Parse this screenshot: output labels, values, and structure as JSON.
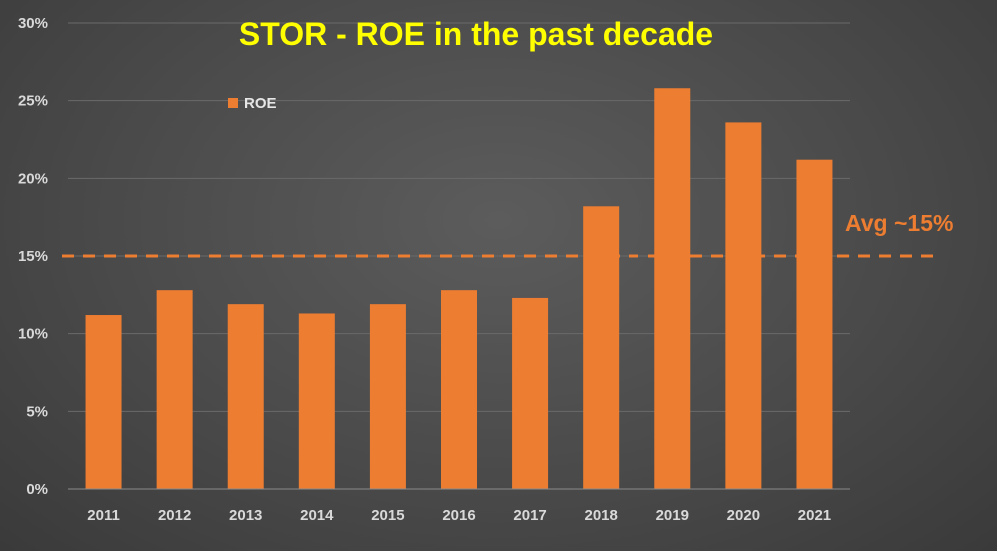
{
  "chart_data": {
    "type": "bar",
    "title": "STOR - ROE in the past decade",
    "categories": [
      "2011",
      "2012",
      "2013",
      "2014",
      "2015",
      "2016",
      "2017",
      "2018",
      "2019",
      "2020",
      "2021"
    ],
    "series": [
      {
        "name": "ROE",
        "values": [
          11.2,
          12.8,
          11.9,
          11.3,
          11.9,
          12.8,
          12.3,
          18.2,
          25.8,
          23.6,
          21.2
        ],
        "color": "#ed7d31"
      }
    ],
    "ylim": [
      0,
      30
    ],
    "yticks": [
      0,
      5,
      10,
      15,
      20,
      25,
      30
    ],
    "ytick_labels": [
      "0%",
      "5%",
      "10%",
      "15%",
      "20%",
      "25%",
      "30%"
    ],
    "grid": true,
    "legend": "top-left",
    "xlabel": "",
    "ylabel": "",
    "reference_line": {
      "value": 15,
      "label": "Avg ~15%",
      "style": "dashed",
      "color": "#ed7d31"
    },
    "colors": {
      "title": "#ffff00",
      "bar": "#ed7d31",
      "gridline": "#6a6a6a",
      "tick_text": "#d9d9d9"
    }
  }
}
